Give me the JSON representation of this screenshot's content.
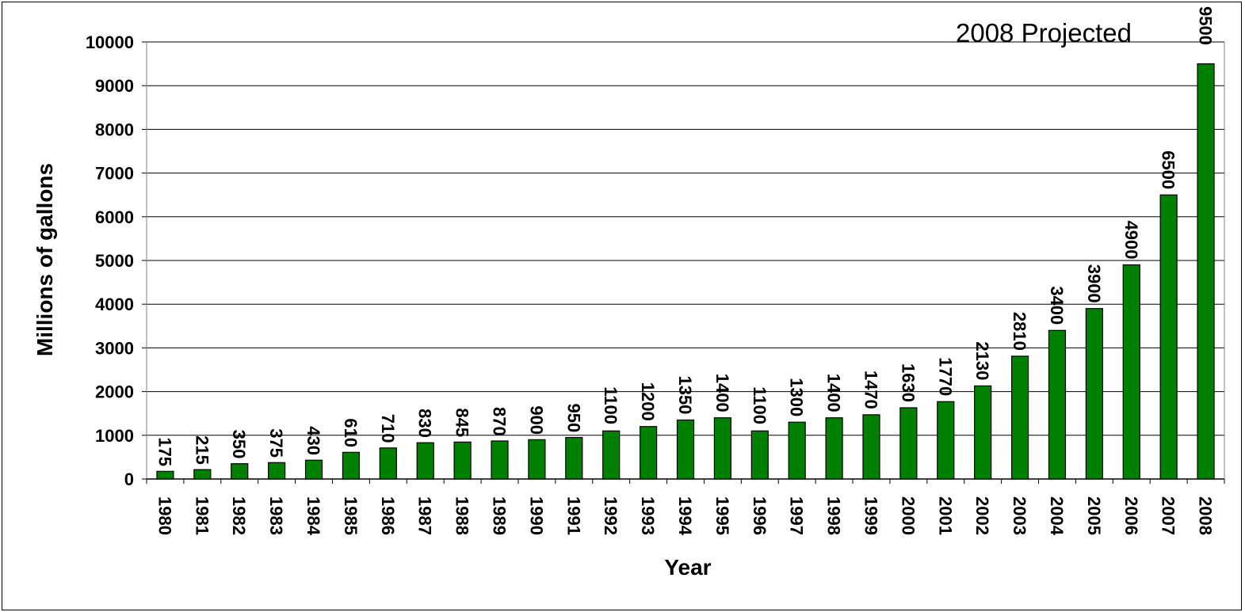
{
  "chart_data": {
    "type": "bar",
    "annotation": "2008 Projected",
    "xlabel": "Year",
    "ylabel": "Millions of gallons",
    "ylim": [
      0,
      10000
    ],
    "y_ticks": [
      0,
      1000,
      2000,
      3000,
      4000,
      5000,
      6000,
      7000,
      8000,
      9000,
      10000
    ],
    "grid": true,
    "bar_color": "#008000",
    "categories": [
      "1980",
      "1981",
      "1982",
      "1983",
      "1984",
      "1985",
      "1986",
      "1987",
      "1988",
      "1989",
      "1990",
      "1991",
      "1992",
      "1993",
      "1994",
      "1995",
      "1996",
      "1997",
      "1998",
      "1999",
      "2000",
      "2001",
      "2002",
      "2003",
      "2004",
      "2005",
      "2006",
      "2007",
      "2008"
    ],
    "values": [
      175,
      215,
      350,
      375,
      430,
      610,
      710,
      830,
      845,
      870,
      900,
      950,
      1100,
      1200,
      1350,
      1400,
      1100,
      1300,
      1400,
      1470,
      1630,
      1770,
      2130,
      2810,
      3400,
      3900,
      4900,
      6500,
      9500
    ]
  }
}
